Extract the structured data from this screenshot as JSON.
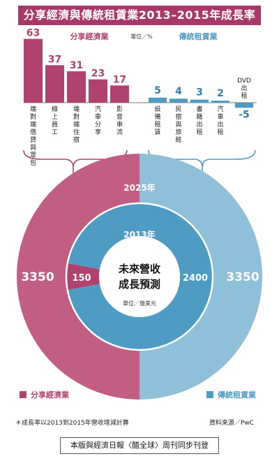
{
  "title": "分享經濟與傳統租賃業2013–2015年成長率",
  "unit_label": "單位／%",
  "colors": {
    "sharing": "#b0426f",
    "sharing_light": "#c25d83",
    "traditional": "#4e9bc4",
    "traditional_light": "#8fbfd9",
    "text_blue": "#2d7fb3"
  },
  "chart_data": [
    {
      "type": "bar",
      "groups": [
        {
          "name": "分享經濟業",
          "categories": [
            "端對端借貸與眾包",
            "線上員工",
            "端對端住宿",
            "汽車分享",
            "影音串流"
          ],
          "values": [
            63,
            37,
            31,
            23,
            17
          ]
        },
        {
          "name": "傳統租賃業",
          "categories": [
            "設備租賃",
            "民宿與旅館",
            "書籍出租",
            "汽車出租",
            "DVD出租"
          ],
          "values": [
            5,
            4,
            3,
            2,
            -5
          ]
        }
      ]
    },
    {
      "type": "pie",
      "title": "未來營收成長預測",
      "unit": "單位／億美元",
      "rings": [
        {
          "year": "2025年",
          "values": {
            "分享經濟業": 3350,
            "傳統租賃業": 3350
          }
        },
        {
          "year": "2013年",
          "values": {
            "分享經濟業": 150,
            "傳統租賃業": 2400
          }
        }
      ]
    }
  ],
  "center_label": {
    "line1": "未來營收",
    "line2": "成長預測",
    "unit": "單位／億美元"
  },
  "legend": {
    "sharing": "分享經濟業",
    "traditional": "傳統租賃業"
  },
  "footnote": "＊成長率以2013到2015年營收增減計算",
  "source": "資料來源／PwC",
  "credit": "本版與經濟日報〈醋全球〉周刊同步刊登"
}
